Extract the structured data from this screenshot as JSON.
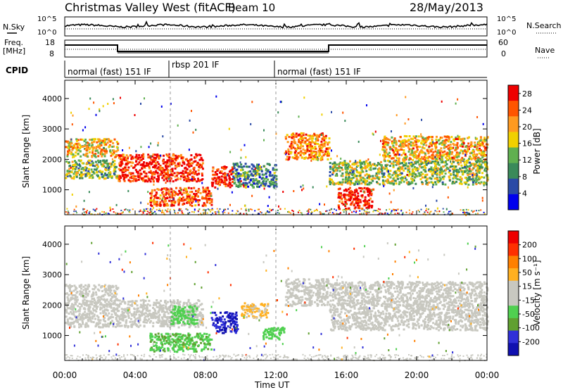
{
  "header": {
    "title": "Christmas Valley West (fitACF)",
    "beam": "Beam 10",
    "date": "28/May/2013"
  },
  "labels": {
    "nsky": "N.Sky",
    "nsearch": "N.Search",
    "freq": "Freq.",
    "freq_unit": "[MHz]",
    "nave": "Nave",
    "cpid": "CPID",
    "xlabel": "Time UT",
    "ylabel_top": "Slant Range [km]",
    "ylabel_bot": "Slant Range [km]",
    "power_label": "Power [dB]",
    "velocity_label": "Velocity [m s⁻¹]"
  },
  "noise_axis": {
    "left_ticks": [
      "10^5",
      "10^0"
    ],
    "right_ticks": [
      "10^5",
      "10^0"
    ]
  },
  "freq_axis": {
    "left_ticks": [
      "18",
      "8"
    ],
    "right_ticks": [
      "60",
      "0"
    ]
  },
  "cpid_segments": [
    {
      "label": "normal (fast) 151 IF",
      "start_hour": 0,
      "end_hour": 6
    },
    {
      "label": "rbsp 201 IF",
      "start_hour": 6,
      "end_hour": 12
    },
    {
      "label": "normal (fast) 151 IF",
      "start_hour": 12,
      "end_hour": 24
    }
  ],
  "colors": {
    "power_scale": [
      "#0000ee",
      "#2a4aa6",
      "#3a8a5a",
      "#60b050",
      "#f0d000",
      "#ff9a20",
      "#ff5500",
      "#ee0000"
    ],
    "velocity_scale": [
      "#1010b0",
      "#3030d8",
      "#60a030",
      "#50d050",
      "#c8c8c0",
      "#c8c8c0",
      "#ffb020",
      "#ff8000",
      "#ff3000",
      "#ee0000"
    ]
  },
  "chart_data": [
    {
      "type": "heatmap",
      "title": "Power",
      "xlabel": "Time UT",
      "ylabel": "Slant Range [km]",
      "x_ticks": [
        "00:00",
        "04:00",
        "08:00",
        "12:00",
        "16:00",
        "20:00",
        "00:00"
      ],
      "x_range_hours": [
        0,
        24
      ],
      "y_ticks": [
        1000,
        2000,
        3000,
        4000
      ],
      "y_range_km": [
        180,
        4600
      ],
      "colorbar": {
        "label": "Power [dB]",
        "ticks": [
          4,
          8,
          12,
          16,
          20,
          24,
          28
        ],
        "range": [
          0,
          30
        ]
      },
      "echo_regions": [
        {
          "t_start": 0.0,
          "t_end": 3.0,
          "range_low_km": 2100,
          "range_high_km": 2700,
          "power_db": 18
        },
        {
          "t_start": 0.0,
          "t_end": 3.0,
          "range_low_km": 1400,
          "range_high_km": 2000,
          "power_db": 13
        },
        {
          "t_start": 3.0,
          "t_end": 7.8,
          "range_low_km": 1300,
          "range_high_km": 2200,
          "power_db": 27
        },
        {
          "t_start": 4.8,
          "t_end": 8.3,
          "range_low_km": 500,
          "range_high_km": 1100,
          "power_db": 25
        },
        {
          "t_start": 8.3,
          "t_end": 9.5,
          "range_low_km": 1100,
          "range_high_km": 1800,
          "power_db": 28
        },
        {
          "t_start": 9.5,
          "t_end": 12.0,
          "range_low_km": 1100,
          "range_high_km": 1900,
          "power_db": 10
        },
        {
          "t_start": 12.5,
          "t_end": 15.0,
          "range_low_km": 2000,
          "range_high_km": 2900,
          "power_db": 22
        },
        {
          "t_start": 15.5,
          "t_end": 17.5,
          "range_low_km": 400,
          "range_high_km": 1100,
          "power_db": 28
        },
        {
          "t_start": 15.0,
          "t_end": 24.0,
          "range_low_km": 1200,
          "range_high_km": 2000,
          "power_db": 14
        },
        {
          "t_start": 18.0,
          "t_end": 24.0,
          "range_low_km": 2000,
          "range_high_km": 2800,
          "power_db": 20
        }
      ]
    },
    {
      "type": "heatmap",
      "title": "Velocity",
      "xlabel": "Time UT",
      "ylabel": "Slant Range [km]",
      "x_ticks": [
        "00:00",
        "04:00",
        "08:00",
        "12:00",
        "16:00",
        "20:00",
        "00:00"
      ],
      "x_range_hours": [
        0,
        24
      ],
      "y_ticks": [
        1000,
        2000,
        3000,
        4000
      ],
      "y_range_km": [
        180,
        4600
      ],
      "colorbar": {
        "label": "Velocity [m s⁻¹]",
        "ticks": [
          200,
          100,
          50,
          15,
          -15,
          -50,
          -100,
          -200
        ],
        "range": [
          -250,
          250
        ]
      },
      "echo_regions": [
        {
          "t_start": 0.0,
          "t_end": 3.0,
          "range_low_km": 1300,
          "range_high_km": 2700,
          "velocity_ms": 0
        },
        {
          "t_start": 3.0,
          "t_end": 7.8,
          "range_low_km": 1300,
          "range_high_km": 2200,
          "velocity_ms": 0
        },
        {
          "t_start": 6.0,
          "t_end": 7.5,
          "range_low_km": 1400,
          "range_high_km": 2000,
          "velocity_ms": -80
        },
        {
          "t_start": 4.8,
          "t_end": 8.3,
          "range_low_km": 500,
          "range_high_km": 1100,
          "velocity_ms": -90
        },
        {
          "t_start": 8.3,
          "t_end": 9.8,
          "range_low_km": 1100,
          "range_high_km": 1800,
          "velocity_ms": -200
        },
        {
          "t_start": 10.0,
          "t_end": 11.5,
          "range_low_km": 1600,
          "range_high_km": 2100,
          "velocity_ms": 60
        },
        {
          "t_start": 11.2,
          "t_end": 12.5,
          "range_low_km": 900,
          "range_high_km": 1300,
          "velocity_ms": -80
        },
        {
          "t_start": 12.5,
          "t_end": 15.0,
          "range_low_km": 2000,
          "range_high_km": 2900,
          "velocity_ms": 20
        },
        {
          "t_start": 15.0,
          "t_end": 24.0,
          "range_low_km": 1200,
          "range_high_km": 2800,
          "velocity_ms": 0
        }
      ]
    }
  ]
}
